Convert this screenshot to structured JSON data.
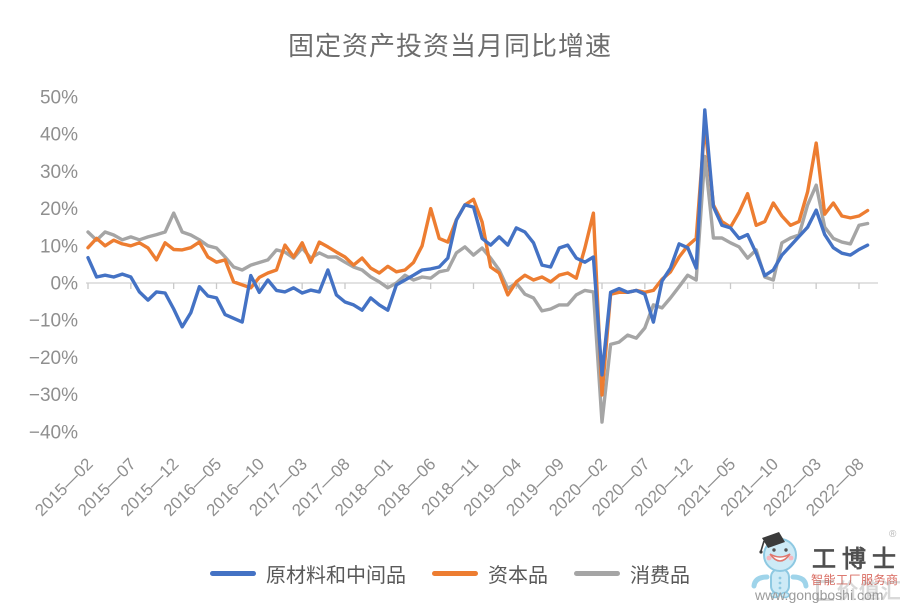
{
  "title": "固定资产投资当月同比增速",
  "legend": [
    {
      "label": "原材料和中间品",
      "color": "#4472C4"
    },
    {
      "label": "资本品",
      "color": "#ED7D31"
    },
    {
      "label": "消费品",
      "color": "#A5A5A5"
    }
  ],
  "watermark": {
    "brand": "工博士",
    "slogan": "智能工厂服务商",
    "url": "www.gongboshi.com",
    "reg": "®",
    "corner_text": "价值汇"
  },
  "chart_data": {
    "type": "line",
    "title": "固定资产投资当月同比增速",
    "x_interval": "monthly",
    "x_start": "2015-02",
    "x_end": "2022-09",
    "x_tick_labels": [
      "2015—02",
      "2015—07",
      "2015—12",
      "2016—05",
      "2016—10",
      "2017—03",
      "2017—08",
      "2018—01",
      "2018—06",
      "2018—11",
      "2019—04",
      "2019—09",
      "2020—02",
      "2020—07",
      "2020—12",
      "2021—05",
      "2021—10",
      "2022—03",
      "2022—08"
    ],
    "x_tick_every_n_months": 5,
    "y_ticks": [
      50,
      40,
      30,
      20,
      10,
      0,
      -10,
      -20,
      -30,
      -40
    ],
    "y_tick_labels": [
      "50%",
      "40%",
      "30%",
      "20%",
      "10%",
      "0%",
      "−10%",
      "−20%",
      "−30%",
      "−40%"
    ],
    "ylim": [
      -40,
      50
    ],
    "unit": "%",
    "grid": "zero-line-only",
    "legend_position": "bottom",
    "series": [
      {
        "name": "原材料和中间品",
        "color": "#4472C4",
        "values": [
          6.8,
          1.6,
          2.1,
          1.6,
          2.4,
          1.6,
          -2.4,
          -4.6,
          -2.4,
          -2.7,
          -7,
          -11.8,
          -8,
          -1,
          -3.5,
          -4,
          -8.5,
          -9.5,
          -10.5,
          2,
          -2.5,
          0.8,
          -2,
          -2.4,
          -1.3,
          -2.7,
          -1.9,
          -2.4,
          3.5,
          -3.2,
          -5.1,
          -5.9,
          -7.3,
          -4,
          -5.9,
          -7.3,
          -0.5,
          0.8,
          2.1,
          3.5,
          3.8,
          4.3,
          6.7,
          16.9,
          21,
          20.4,
          12,
          10.2,
          12.4,
          10.2,
          14.8,
          13.7,
          10.8,
          4.8,
          4.3,
          9.4,
          10.2,
          6.7,
          5.6,
          7,
          -24.7,
          -2.5,
          -1.5,
          -2.5,
          -2,
          -3,
          -10.5,
          0.5,
          4,
          10.5,
          9.5,
          4,
          46.5,
          20.5,
          15.5,
          14.8,
          12,
          13,
          8,
          2,
          3.5,
          7.5,
          10,
          12.5,
          15,
          19.6,
          13,
          9.5,
          8,
          7.5,
          9,
          10.2
        ]
      },
      {
        "name": "资本品",
        "color": "#ED7D31",
        "values": [
          9.5,
          12,
          10,
          11.5,
          10.5,
          10,
          10.8,
          9.4,
          6.2,
          10.8,
          9,
          8.9,
          9.5,
          11,
          7,
          5.6,
          6.2,
          0.3,
          -0.5,
          -1.3,
          1.5,
          2.7,
          3.5,
          10.2,
          7,
          10.8,
          5.6,
          11,
          9.7,
          8.3,
          7,
          4.8,
          6.7,
          4,
          2.7,
          4.5,
          3,
          3.5,
          5.5,
          10,
          20,
          12,
          11,
          17,
          21,
          22.5,
          16.4,
          4.3,
          2.7,
          -3.2,
          0.3,
          2.1,
          0.8,
          1.6,
          0.3,
          2.1,
          2.7,
          1.3,
          9.4,
          18.8,
          -30.1,
          -3,
          -2.5,
          -2.5,
          -2,
          -2.5,
          -2,
          1,
          3,
          7,
          10,
          12,
          42.5,
          21,
          16.5,
          15,
          19,
          24,
          15.5,
          16.5,
          21.5,
          18,
          15.5,
          16.5,
          24.5,
          37.6,
          18.5,
          21.5,
          18,
          17.5,
          18,
          19.5
        ]
      },
      {
        "name": "消费品",
        "color": "#A5A5A5",
        "values": [
          13.7,
          11.5,
          13.7,
          12.9,
          11.6,
          12.4,
          11.6,
          12.4,
          13,
          13.7,
          18.8,
          13.7,
          12.9,
          11.6,
          10,
          9.4,
          7,
          4.3,
          3.5,
          4.8,
          5.5,
          6.2,
          8.9,
          8.3,
          6.7,
          9.4,
          6.7,
          8.1,
          7,
          7,
          5.6,
          4.3,
          3.5,
          1.6,
          0.3,
          -1.3,
          0,
          2.1,
          0.8,
          1.6,
          1.3,
          3,
          3.5,
          8.1,
          9.7,
          7.5,
          9.4,
          6.7,
          3.5,
          -1.5,
          0,
          -3,
          -4,
          -7.5,
          -7,
          -5.9,
          -5.9,
          -3.2,
          -2,
          -2.4,
          -37.4,
          -16.5,
          -15.9,
          -14,
          -14.8,
          -12.1,
          -5.9,
          -6.7,
          -4,
          -1,
          2.1,
          0.8,
          34,
          12.1,
          12.1,
          10.8,
          9.7,
          6.7,
          8.9,
          1.6,
          0.8,
          10.8,
          12.1,
          12.9,
          21,
          26.3,
          15,
          12,
          11,
          10.5,
          15.5,
          16
        ]
      }
    ]
  }
}
